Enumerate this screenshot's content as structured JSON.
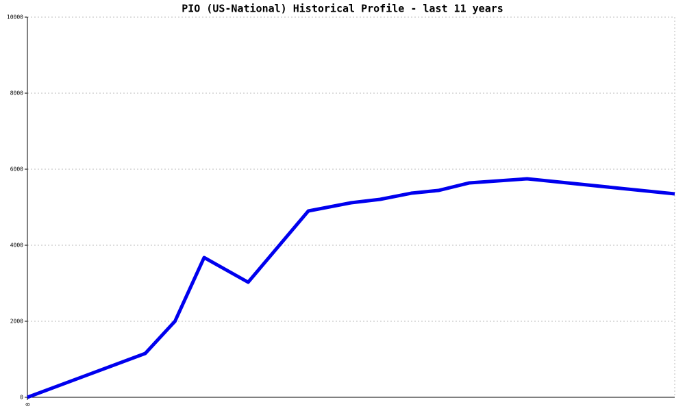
{
  "chart_data": {
    "type": "line",
    "title": "PIO (US-National) Historical Profile - last 11 years",
    "x": [
      0,
      18.2,
      22.8,
      27.3,
      34.1,
      43.4,
      50.0,
      54.5,
      59.3,
      63.5,
      68.3,
      77.2,
      100
    ],
    "series": [
      {
        "color": "#0000ee",
        "values": [
          0,
          1153,
          2000,
          3676,
          3027,
          4901,
          5117,
          5207,
          5369,
          5441,
          5640,
          5748,
          5351
        ]
      }
    ],
    "xlim": [
      0,
      100
    ],
    "xticks": [
      0
    ],
    "ylim": [
      0,
      10000
    ],
    "yticks": [
      0,
      2000,
      4000,
      6000,
      8000,
      10000
    ],
    "grid": true
  }
}
